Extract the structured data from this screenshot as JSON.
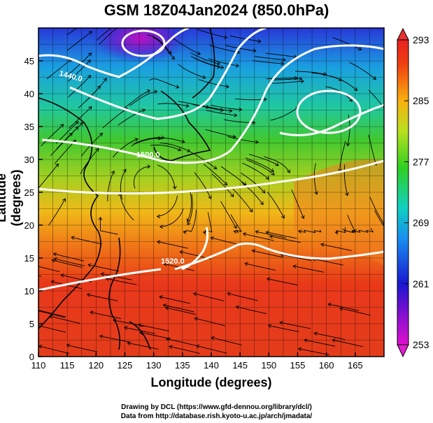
{
  "title": "GSM 18Z04Jan2024 (850.0hPa)",
  "axes": {
    "xlabel": "Longitude (degrees)",
    "ylabel": "Latitude  (degrees)",
    "x_ticks": [
      "110",
      "115",
      "120",
      "125",
      "130",
      "135",
      "140",
      "145",
      "150",
      "155",
      "160",
      "165"
    ],
    "y_ticks": [
      "0",
      "5",
      "10",
      "15",
      "20",
      "25",
      "30",
      "35",
      "40",
      "45"
    ],
    "x_range": [
      110,
      170
    ],
    "y_range": [
      0,
      50
    ]
  },
  "colorbar": {
    "ticks": [
      "253",
      "261",
      "269",
      "277",
      "285",
      "293"
    ],
    "range": [
      253,
      293
    ]
  },
  "contour_labels": [
    "1440.0",
    "1500.0",
    "1520.0"
  ],
  "credits": {
    "line1": "Drawing by DCL (https://www.gfd-dennou.org/library/dcl/)",
    "line2": "Data from http://database.rish.kyoto-u.ac.jp/arch/jmadata/"
  },
  "colors": {
    "cold": "#c020c0",
    "cool": "#2040e0",
    "mid": "#40c040",
    "warm": "#f0a020",
    "hot": "#e02020"
  }
}
